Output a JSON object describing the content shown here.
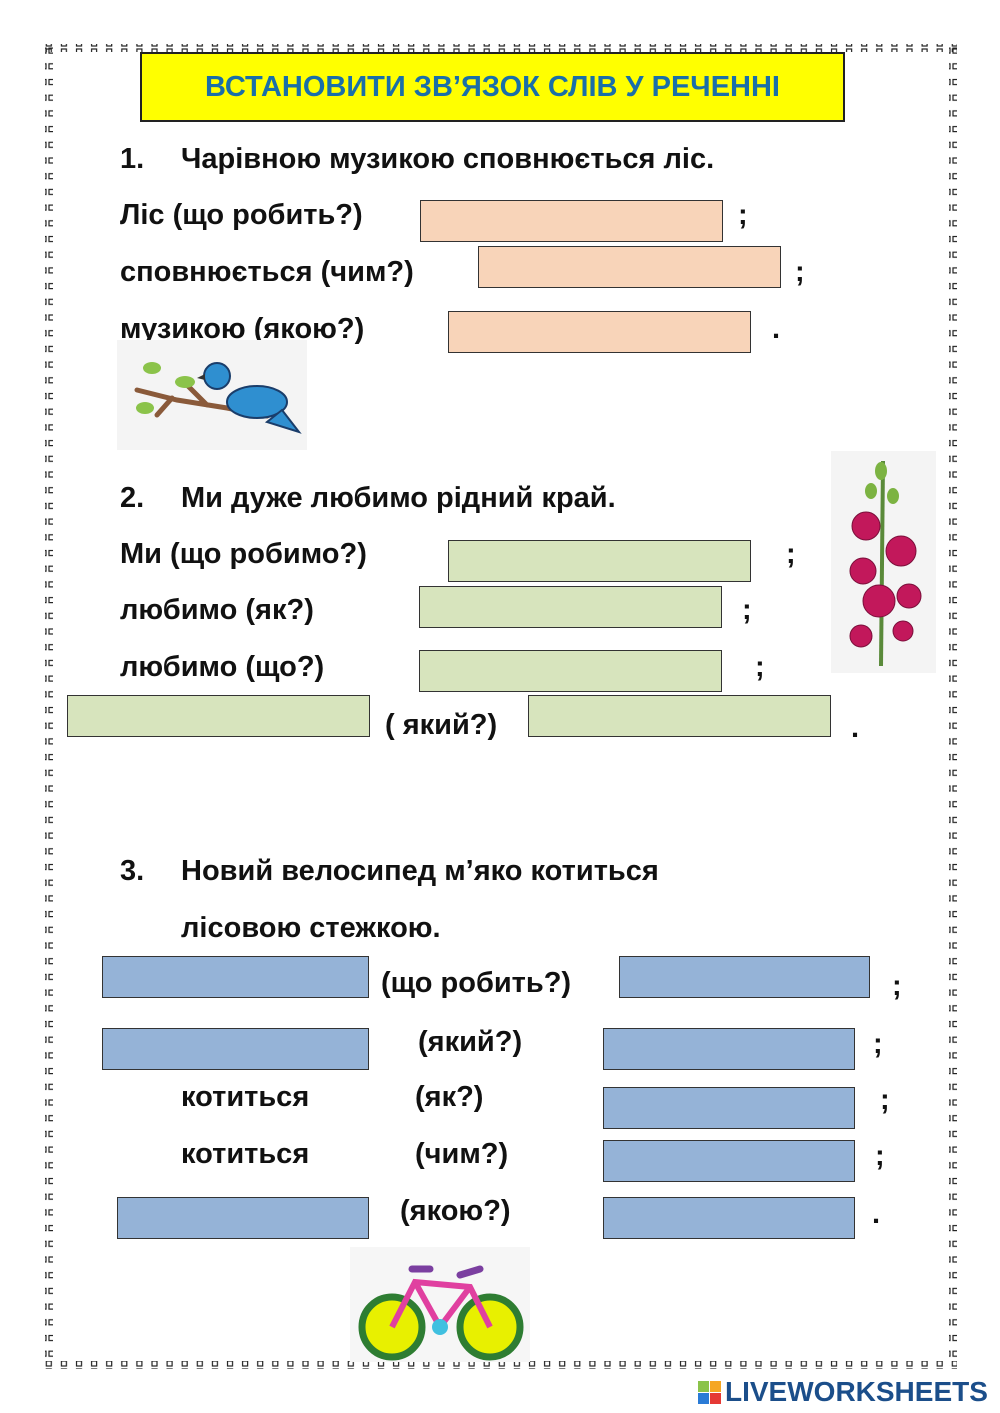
{
  "title": "ВСТАНОВИТИ ЗВ’ЯЗОК  СЛІВ У РЕЧЕННІ",
  "colors": {
    "title_bg": "#ffff00",
    "title_text": "#1a6fa8",
    "task1_box": "#f8d4b9",
    "task2_box": "#d7e4bd",
    "task3_box": "#95b3d7"
  },
  "task1": {
    "number": "1.",
    "sentence": "Чарівною музикою сповнюється ліс.",
    "q1": "Ліс (що робить?)",
    "q2": "сповнюється  (чим?)",
    "q3": "музикою (якою?)",
    "semi": ";",
    "dot": "."
  },
  "task2": {
    "number": "2.",
    "sentence": "Ми дуже любимо рідний край.",
    "q1": "Ми (що робимо?)",
    "q2": "любимо  (як?)",
    "q3": "любимо  (що?)",
    "q4": "( який?)",
    "semi": ";",
    "dot": "."
  },
  "task3": {
    "number": "3.",
    "sentence_line1": "Новий велосипед  м’яко  котиться",
    "sentence_line2": "лісовою стежкою.",
    "q1": "(що робить?)",
    "q2": "(який?)",
    "w3": "котиться",
    "q3": "(як?)",
    "w4": "котиться",
    "q4": "(чим?)",
    "q5": "(якою?)",
    "semi": ";",
    "dot": "."
  },
  "images": [
    "bird-on-branch",
    "hollyhock-flower",
    "bicycle"
  ],
  "logo": {
    "text": "LIVEWORKSHEETS",
    "tile_letters": [
      "L",
      "I",
      "V",
      "E"
    ]
  }
}
